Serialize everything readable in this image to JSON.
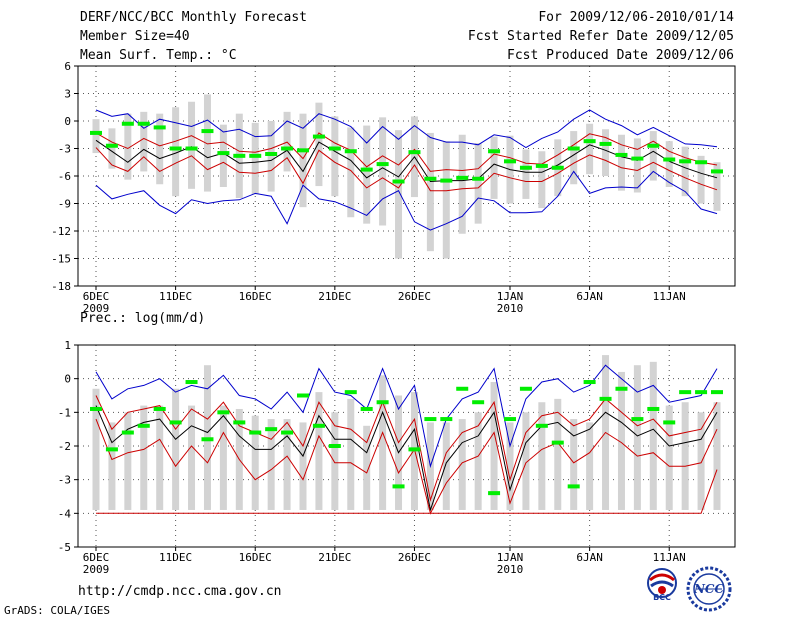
{
  "header": {
    "title": "DERF/NCC/BCC Monthly Forecast",
    "member_size": "Member Size=40",
    "variable": "Mean Surf. Temp.: °C",
    "period": "For 2009/12/06-2010/01/14",
    "fcst_started": "Fcst Started Refer Date 2009/12/05",
    "fcst_produced": "Fcst Produced Date 2009/12/06"
  },
  "footer": {
    "url": "http://cmdp.ncc.cma.gov.cn",
    "grads": "GrADS: COLA/IGES",
    "logo_bcc": "BCC",
    "logo_ncc": "NCC"
  },
  "colors": {
    "box": "#d3d3d3",
    "median": "#00ee00",
    "mean": "#000000",
    "inner": "#cc0000",
    "outer": "#0000cc",
    "grid": "#555555"
  },
  "chart_data": [
    {
      "type": "line",
      "panel": "temperature",
      "title": "Mean Surf. Temp.: °C",
      "ylabel": "°C",
      "ylim": [
        -18,
        6
      ],
      "yticks": [
        6,
        3,
        0,
        -3,
        -6,
        -9,
        -12,
        -15,
        -18
      ],
      "xlim": [
        0,
        39
      ],
      "xticks": [
        {
          "day": 0,
          "label": "6DEC",
          "sub": "2009"
        },
        {
          "day": 5,
          "label": "11DEC"
        },
        {
          "day": 10,
          "label": "16DEC"
        },
        {
          "day": 15,
          "label": "21DEC"
        },
        {
          "day": 20,
          "label": "26DEC"
        },
        {
          "day": 26,
          "label": "1JAN",
          "sub": "2010"
        },
        {
          "day": 31,
          "label": "6JAN"
        },
        {
          "day": 36,
          "label": "11JAN"
        }
      ],
      "series": [
        {
          "name": "ensemble max",
          "color": "outer",
          "values": [
            1.2,
            0.5,
            0.8,
            -0.8,
            0.2,
            -0.2,
            -0.6,
            0.1,
            -1.2,
            -0.9,
            -1.7,
            -1.6,
            0.0,
            -0.8,
            0.8,
            0.2,
            -0.6,
            -2.4,
            -0.6,
            -2.0,
            -0.5,
            -1.8,
            -2.3,
            -2.3,
            -2.6,
            -1.5,
            -1.8,
            -2.9,
            -1.9,
            -1.2,
            0.2,
            1.2,
            0.2,
            -0.5,
            -1.5,
            -0.7,
            -1.6,
            -2.5,
            -2.6,
            -2.8
          ]
        },
        {
          "name": "upper band",
          "color": "inner",
          "values": [
            -1.3,
            -2.3,
            -3.0,
            -1.9,
            -2.7,
            -2.2,
            -1.6,
            -2.5,
            -2.3,
            -3.3,
            -3.4,
            -3.0,
            -2.3,
            -4.1,
            -1.3,
            -2.4,
            -3.2,
            -5.0,
            -3.8,
            -4.8,
            -3.1,
            -5.5,
            -5.3,
            -5.4,
            -5.2,
            -3.6,
            -4.0,
            -4.6,
            -4.7,
            -3.7,
            -2.6,
            -1.4,
            -1.8,
            -2.6,
            -3.1,
            -2.2,
            -3.3,
            -4.0,
            -4.5,
            -4.8
          ]
        },
        {
          "name": "ensemble mean",
          "color": "mean",
          "values": [
            -2.1,
            -3.3,
            -4.5,
            -3.1,
            -4.1,
            -3.5,
            -2.8,
            -4.0,
            -3.5,
            -4.6,
            -4.5,
            -4.3,
            -3.2,
            -5.5,
            -2.3,
            -3.3,
            -4.3,
            -6.2,
            -5.1,
            -6.1,
            -3.9,
            -6.6,
            -6.5,
            -6.5,
            -6.3,
            -4.7,
            -5.3,
            -5.6,
            -5.6,
            -4.8,
            -3.7,
            -2.6,
            -3.2,
            -3.9,
            -4.3,
            -3.3,
            -4.4,
            -5.1,
            -5.7,
            -6.2
          ]
        },
        {
          "name": "lower band",
          "color": "inner",
          "values": [
            -2.9,
            -4.8,
            -5.5,
            -3.9,
            -5.5,
            -4.6,
            -3.8,
            -5.3,
            -4.5,
            -5.6,
            -5.7,
            -5.4,
            -4.0,
            -6.8,
            -3.2,
            -4.5,
            -5.4,
            -7.3,
            -6.2,
            -7.3,
            -4.8,
            -7.6,
            -7.6,
            -7.4,
            -7.3,
            -5.7,
            -6.2,
            -6.6,
            -6.6,
            -5.7,
            -4.6,
            -3.7,
            -4.3,
            -5.1,
            -5.4,
            -4.5,
            -5.4,
            -6.2,
            -6.9,
            -7.5
          ]
        },
        {
          "name": "ensemble min",
          "color": "outer",
          "values": [
            -7.0,
            -8.5,
            -8.0,
            -7.6,
            -9.2,
            -10.1,
            -8.6,
            -9.0,
            -8.7,
            -8.6,
            -7.9,
            -8.2,
            -11.2,
            -7.0,
            -8.5,
            -8.8,
            -9.5,
            -10.3,
            -8.5,
            -7.6,
            -11.0,
            -11.9,
            -11.2,
            -10.4,
            -8.4,
            -8.7,
            -10.0,
            -10.0,
            -9.9,
            -8.2,
            -5.5,
            -7.9,
            -7.3,
            -7.2,
            -7.3,
            -5.5,
            -6.7,
            -7.7,
            -9.6,
            -10.1
          ]
        }
      ],
      "boxes": {
        "high": [
          0.2,
          -0.8,
          0.8,
          1.0,
          0.8,
          1.5,
          2.1,
          2.9,
          -0.4,
          0.8,
          -0.2,
          0.0,
          1.0,
          0.8,
          2.0,
          0.5,
          -0.7,
          -0.5,
          0.4,
          -1.0,
          0.5,
          -1.3,
          -2.2,
          -1.5,
          -2.4,
          -1.7,
          -1.6,
          -3.1,
          -3.3,
          -2.0,
          -1.1,
          -0.3,
          -0.9,
          -1.5,
          -1.9,
          -1.1,
          -2.2,
          -2.8,
          -3.8,
          -4.5
        ],
        "low": [
          -3.5,
          -5.2,
          -6.4,
          -5.5,
          -6.9,
          -8.2,
          -7.4,
          -7.7,
          -7.2,
          -8.4,
          -8.0,
          -7.7,
          -5.5,
          -9.4,
          -7.1,
          -8.2,
          -10.5,
          -11.2,
          -11.4,
          -15.0,
          -8.3,
          -14.2,
          -15.0,
          -12.3,
          -11.2,
          -8.5,
          -9.0,
          -8.5,
          -9.5,
          -8.2,
          -6.9,
          -5.8,
          -6.0,
          -7.6,
          -7.8,
          -6.5,
          -7.2,
          -8.2,
          -9.0,
          -9.8
        ],
        "median": [
          -1.3,
          -2.7,
          -0.3,
          -0.3,
          -0.7,
          -3.0,
          -3.0,
          -1.1,
          -3.5,
          -3.8,
          -3.8,
          -3.6,
          -3.0,
          -3.2,
          -1.7,
          -3.0,
          -3.3,
          -5.3,
          -4.7,
          -6.6,
          -3.4,
          -6.3,
          -6.5,
          -6.2,
          -6.3,
          -3.3,
          -4.4,
          -5.1,
          -4.9,
          -5.1,
          -3.0,
          -2.2,
          -2.5,
          -3.7,
          -4.1,
          -2.7,
          -4.2,
          -4.4,
          -4.5,
          -5.5
        ]
      }
    },
    {
      "type": "line",
      "panel": "precipitation",
      "title": "Prec.: log(mm/d)",
      "ylabel": "log(mm/d)",
      "ylim": [
        -5,
        1
      ],
      "yticks": [
        1,
        0,
        -1,
        -2,
        -3,
        -4,
        -5
      ],
      "xlim": [
        0,
        39
      ],
      "xticks": [
        {
          "day": 0,
          "label": "6DEC",
          "sub": "2009"
        },
        {
          "day": 5,
          "label": "11DEC"
        },
        {
          "day": 10,
          "label": "16DEC"
        },
        {
          "day": 15,
          "label": "21DEC"
        },
        {
          "day": 20,
          "label": "26DEC"
        },
        {
          "day": 26,
          "label": "1JAN",
          "sub": "2010"
        },
        {
          "day": 31,
          "label": "6JAN"
        },
        {
          "day": 36,
          "label": "11JAN"
        }
      ],
      "series": [
        {
          "name": "ensemble max",
          "color": "outer",
          "values": [
            0.2,
            -0.6,
            -0.3,
            -0.2,
            0.0,
            -0.4,
            -0.2,
            -0.3,
            0.1,
            -0.5,
            -0.6,
            -0.9,
            -0.4,
            -1.0,
            0.3,
            -0.4,
            -0.5,
            -0.9,
            0.3,
            -0.9,
            -0.2,
            -2.6,
            -1.2,
            -0.6,
            -0.4,
            0.3,
            -2.0,
            -0.6,
            -0.1,
            0.0,
            -0.4,
            -0.2,
            0.4,
            0.0,
            -0.4,
            -0.2,
            -0.7,
            -0.6,
            -0.5,
            0.3
          ]
        },
        {
          "name": "upper band",
          "color": "inner",
          "values": [
            -0.5,
            -1.5,
            -1.0,
            -0.9,
            -0.8,
            -1.5,
            -0.9,
            -1.2,
            -0.7,
            -1.4,
            -1.6,
            -1.8,
            -1.3,
            -2.0,
            -0.7,
            -1.4,
            -1.5,
            -1.9,
            -0.7,
            -1.9,
            -1.2,
            -3.6,
            -2.2,
            -1.6,
            -1.4,
            -0.7,
            -3.0,
            -1.6,
            -1.1,
            -1.0,
            -1.4,
            -1.2,
            -0.6,
            -1.0,
            -1.4,
            -1.2,
            -1.7,
            -1.6,
            -1.5,
            -0.7
          ]
        },
        {
          "name": "ensemble mean",
          "color": "mean",
          "values": [
            -0.8,
            -1.9,
            -1.5,
            -1.3,
            -1.2,
            -1.8,
            -1.4,
            -1.6,
            -1.1,
            -1.7,
            -2.1,
            -2.1,
            -1.7,
            -2.3,
            -1.1,
            -1.8,
            -1.8,
            -2.2,
            -1.0,
            -2.2,
            -1.5,
            -3.9,
            -2.5,
            -1.9,
            -1.7,
            -1.0,
            -3.3,
            -1.9,
            -1.4,
            -1.3,
            -1.7,
            -1.5,
            -1.0,
            -1.3,
            -1.7,
            -1.5,
            -2.0,
            -1.9,
            -1.8,
            -1.0
          ]
        },
        {
          "name": "lower band",
          "color": "inner",
          "values": [
            -1.2,
            -2.4,
            -2.2,
            -2.1,
            -1.8,
            -2.6,
            -2.0,
            -2.5,
            -1.6,
            -2.4,
            -3.0,
            -2.7,
            -2.3,
            -3.0,
            -1.7,
            -2.5,
            -2.5,
            -2.8,
            -1.6,
            -2.8,
            -2.1,
            -4.0,
            -3.1,
            -2.5,
            -2.3,
            -1.6,
            -3.7,
            -2.5,
            -2.1,
            -1.9,
            -2.5,
            -2.2,
            -1.6,
            -1.9,
            -2.3,
            -2.2,
            -2.6,
            -2.6,
            -2.5,
            -1.5
          ]
        },
        {
          "name": "ensemble min",
          "color": "inner",
          "values": [
            -4.0,
            -4.0,
            -4.0,
            -4.0,
            -4.0,
            -4.0,
            -4.0,
            -4.0,
            -4.0,
            -4.0,
            -4.0,
            -4.0,
            -4.0,
            -4.0,
            -4.0,
            -4.0,
            -4.0,
            -4.0,
            -4.0,
            -4.0,
            -4.0,
            -4.0,
            -4.0,
            -4.0,
            -4.0,
            -4.0,
            -4.0,
            -4.0,
            -4.0,
            -4.0,
            -4.0,
            -4.0,
            -4.0,
            -4.0,
            -4.0,
            -4.0,
            -4.0,
            -4.0,
            -4.0,
            -2.7
          ]
        }
      ],
      "boxes": {
        "high": [
          -0.3,
          -1.3,
          -1.0,
          -0.8,
          -0.8,
          -0.3,
          -0.8,
          0.4,
          -0.8,
          -0.9,
          -1.1,
          -1.2,
          -1.2,
          -1.3,
          -0.4,
          -1.0,
          -0.6,
          -1.4,
          0.1,
          -0.5,
          -0.4,
          -1.3,
          -1.3,
          -1.2,
          -1.0,
          -0.1,
          -1.3,
          -1.0,
          -0.7,
          -0.6,
          -1.2,
          -1.3,
          0.7,
          0.2,
          0.4,
          0.5,
          -0.8,
          -0.7,
          -1.0,
          -0.7
        ],
        "low": [
          -3.9,
          -3.9,
          -3.9,
          -3.9,
          -3.9,
          -3.9,
          -3.9,
          -3.9,
          -3.9,
          -3.9,
          -3.9,
          -3.9,
          -3.9,
          -3.9,
          -3.9,
          -3.9,
          -3.9,
          -3.9,
          -3.9,
          -3.9,
          -3.9,
          -3.9,
          -3.9,
          -3.9,
          -3.9,
          -3.9,
          -3.9,
          -3.9,
          -3.9,
          -3.9,
          -3.9,
          -3.9,
          -3.9,
          -3.9,
          -3.9,
          -3.9,
          -3.9,
          -3.9,
          -3.9,
          -3.9
        ],
        "median": [
          -0.9,
          -2.1,
          -1.6,
          -1.4,
          -0.9,
          -1.3,
          -0.1,
          -1.8,
          -1.0,
          -1.3,
          -1.6,
          -1.5,
          -1.6,
          -0.5,
          -1.4,
          -2.0,
          -0.4,
          -0.9,
          -0.7,
          -3.2,
          -2.1,
          -1.2,
          -1.2,
          -0.3,
          -0.7,
          -3.4,
          -1.2,
          -0.3,
          -1.4,
          -1.9,
          -3.2,
          -0.1,
          -0.6,
          -0.3,
          -1.2,
          -0.9,
          -1.3,
          -0.4,
          -0.4,
          -0.4
        ]
      }
    }
  ]
}
